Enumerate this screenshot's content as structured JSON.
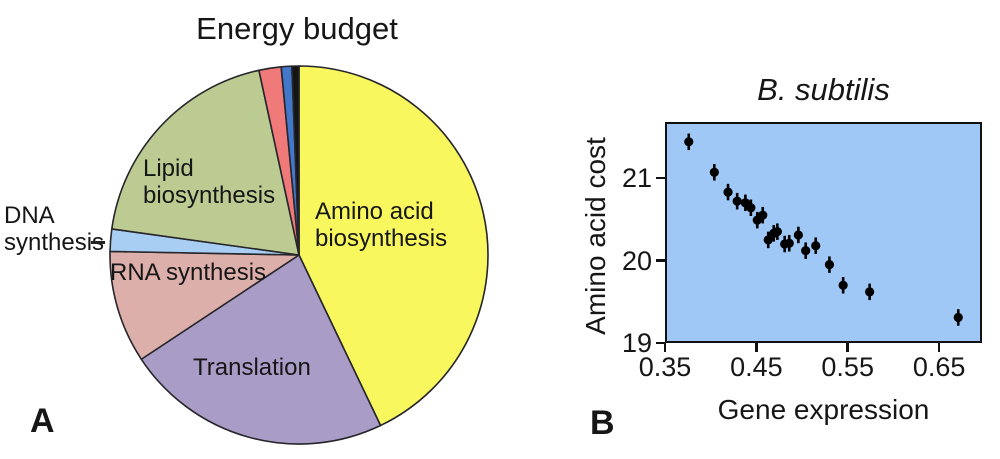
{
  "panel_a": {
    "letter": "A",
    "title": "Energy budget",
    "pie_labels": {
      "amino": "Amino acid\nbiosynthesis",
      "lipid": "Lipid\nbiosynthesis",
      "rna": "RNA synthesis",
      "translation": "Translation",
      "dna": "DNA\nsynthesis"
    }
  },
  "panel_b": {
    "letter": "B",
    "title": "B. subtilis",
    "xlabel": "Gene expression",
    "ylabel": "Amino acid cost"
  },
  "chart_data": [
    {
      "id": "energy-budget-pie",
      "type": "pie",
      "title": "Energy budget",
      "slices": [
        {
          "label": "Amino acid biosynthesis",
          "percent": 42.9,
          "color": "#f9f75e"
        },
        {
          "label": "Translation",
          "percent": 22.8,
          "color": "#a99dc7"
        },
        {
          "label": "RNA synthesis",
          "percent": 9.6,
          "color": "#ddafab"
        },
        {
          "label": "DNA synthesis",
          "percent": 1.9,
          "color": "#a8cef3"
        },
        {
          "label": "Lipid biosynthesis",
          "percent": 19.4,
          "color": "#bccb92"
        },
        {
          "label": "",
          "percent": 1.9,
          "color": "#f0797a"
        },
        {
          "label": "",
          "percent": 0.9,
          "color": "#4377c9"
        },
        {
          "label": "",
          "percent": 0.6,
          "color": "#141414"
        }
      ],
      "outline_color": "#26262b"
    },
    {
      "id": "b-subtilis-scatter",
      "type": "scatter",
      "title": "B. subtilis",
      "xlabel": "Gene expression",
      "ylabel": "Amino acid cost",
      "xlim": [
        0.35,
        0.697
      ],
      "ylim": [
        19,
        21.68
      ],
      "xticks": [
        {
          "v": 0.35,
          "label": "0.35"
        },
        {
          "v": 0.45,
          "label": "0.45"
        },
        {
          "v": 0.55,
          "label": "0.55"
        },
        {
          "v": 0.65,
          "label": "0.65"
        }
      ],
      "yticks": [
        {
          "v": 21,
          "label": "21"
        },
        {
          "v": 20,
          "label": "20"
        },
        {
          "v": 19,
          "label": "19"
        }
      ],
      "background": "#9fc8f6",
      "marker_color": "#000000",
      "error": 0.1,
      "legend": "none",
      "grid": false,
      "points": [
        [
          0.376,
          21.44
        ],
        [
          0.404,
          21.07
        ],
        [
          0.419,
          20.83
        ],
        [
          0.429,
          20.72
        ],
        [
          0.438,
          20.7
        ],
        [
          0.444,
          20.64
        ],
        [
          0.451,
          20.49
        ],
        [
          0.457,
          20.55
        ],
        [
          0.463,
          20.25
        ],
        [
          0.469,
          20.33
        ],
        [
          0.473,
          20.35
        ],
        [
          0.481,
          20.2
        ],
        [
          0.486,
          20.21
        ],
        [
          0.496,
          20.31
        ],
        [
          0.504,
          20.12
        ],
        [
          0.515,
          20.18
        ],
        [
          0.53,
          19.95
        ],
        [
          0.545,
          19.7
        ],
        [
          0.574,
          19.62
        ],
        [
          0.671,
          19.31
        ]
      ]
    }
  ]
}
